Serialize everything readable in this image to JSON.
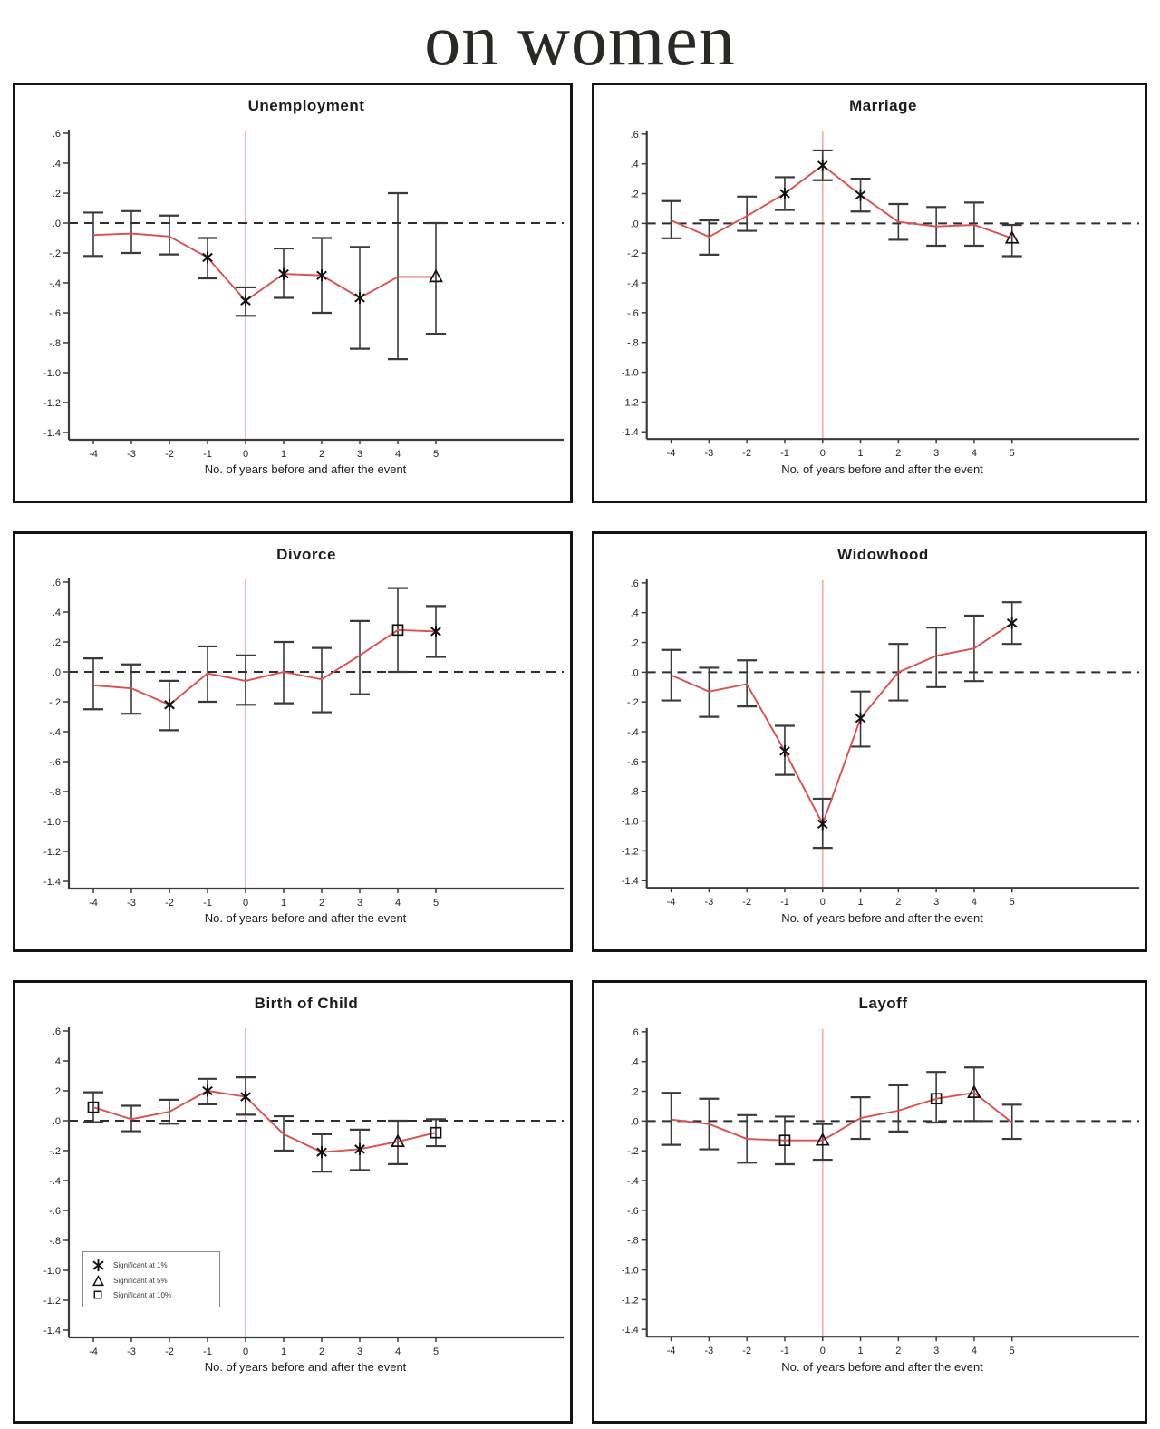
{
  "title": "on women",
  "axis": {
    "xlabel": "No. of years before and after the event",
    "x_ticks": [
      "-4",
      "-3",
      "-2",
      "-1",
      "0",
      "1",
      "2",
      "3",
      "4",
      "5"
    ],
    "y_ticks": [
      ".6",
      ".4",
      ".2",
      ".0",
      "-.2",
      "-.4",
      "-.6",
      "-.8",
      "-1.0",
      "-1.2",
      "-1.4"
    ],
    "y_tick_values": [
      0.6,
      0.4,
      0.2,
      0.0,
      -0.2,
      -0.4,
      -0.6,
      -0.8,
      -1.0,
      -1.2,
      -1.4
    ],
    "ylim": [
      -1.4,
      0.6
    ],
    "event_line_x": 0,
    "zero_line_y": 0
  },
  "legend": {
    "items": [
      {
        "marker": "star",
        "label": "Significant at 1%"
      },
      {
        "marker": "triangle",
        "label": "Significant at 5%"
      },
      {
        "marker": "square",
        "label": "Significant at 10%"
      }
    ]
  },
  "colors": {
    "line": "#dd4f4f",
    "event_line": "#f3b1b1",
    "error_bar": "#3a3a3a",
    "zero_line": "#2e2e2e",
    "axis": "#3a3a3a",
    "marker": "#111111",
    "tick_text": "#222222"
  },
  "chart_data": [
    {
      "type": "line",
      "title": "Unemployment",
      "xlabel": "No. of years before and after the event",
      "ylim": [
        -1.4,
        0.6
      ],
      "x": [
        -4,
        -3,
        -2,
        -1,
        0,
        1,
        2,
        3,
        4,
        5
      ],
      "values": [
        -0.08,
        -0.07,
        -0.09,
        -0.23,
        -0.52,
        -0.34,
        -0.35,
        -0.5,
        -0.36,
        -0.36
      ],
      "ci_low": [
        -0.22,
        -0.2,
        -0.21,
        -0.37,
        -0.62,
        -0.5,
        -0.6,
        -0.84,
        -0.91,
        -0.74
      ],
      "ci_high": [
        0.07,
        0.08,
        0.05,
        -0.1,
        -0.43,
        -0.17,
        -0.1,
        -0.16,
        0.2,
        0.0
      ],
      "significance": [
        null,
        null,
        null,
        "1%",
        "1%",
        "1%",
        "1%",
        "1%",
        null,
        "5%"
      ]
    },
    {
      "type": "line",
      "title": "Marriage",
      "xlabel": "No. of years before and after the event",
      "ylim": [
        -1.4,
        0.6
      ],
      "x": [
        -4,
        -3,
        -2,
        -1,
        0,
        1,
        2,
        3,
        4,
        5
      ],
      "values": [
        0.02,
        -0.09,
        0.05,
        0.2,
        0.39,
        0.19,
        0.01,
        -0.02,
        -0.01,
        -0.1
      ],
      "ci_low": [
        -0.1,
        -0.21,
        -0.05,
        0.09,
        0.29,
        0.08,
        -0.11,
        -0.15,
        -0.15,
        -0.22
      ],
      "ci_high": [
        0.15,
        0.02,
        0.18,
        0.31,
        0.49,
        0.3,
        0.13,
        0.11,
        0.14,
        -0.01
      ],
      "significance": [
        null,
        null,
        null,
        "1%",
        "1%",
        "1%",
        null,
        null,
        null,
        "5%"
      ]
    },
    {
      "type": "line",
      "title": "Divorce",
      "xlabel": "No. of years before and after the event",
      "ylim": [
        -1.4,
        0.6
      ],
      "x": [
        -4,
        -3,
        -2,
        -1,
        0,
        1,
        2,
        3,
        4,
        5
      ],
      "values": [
        -0.09,
        -0.11,
        -0.22,
        -0.01,
        -0.06,
        0.0,
        -0.05,
        0.11,
        0.28,
        0.27
      ],
      "ci_low": [
        -0.25,
        -0.28,
        -0.39,
        -0.2,
        -0.22,
        -0.21,
        -0.27,
        -0.15,
        0.0,
        0.1
      ],
      "ci_high": [
        0.09,
        0.05,
        -0.06,
        0.17,
        0.11,
        0.2,
        0.16,
        0.34,
        0.56,
        0.44
      ],
      "significance": [
        null,
        null,
        "1%",
        null,
        null,
        null,
        null,
        null,
        "10%",
        "1%"
      ]
    },
    {
      "type": "line",
      "title": "Widowhood",
      "xlabel": "No. of years before and after the event",
      "ylim": [
        -1.4,
        0.6
      ],
      "x": [
        -4,
        -3,
        -2,
        -1,
        0,
        1,
        2,
        3,
        4,
        5
      ],
      "values": [
        -0.02,
        -0.13,
        -0.08,
        -0.53,
        -1.02,
        -0.31,
        0.0,
        0.11,
        0.16,
        0.33
      ],
      "ci_low": [
        -0.19,
        -0.3,
        -0.23,
        -0.69,
        -1.18,
        -0.5,
        -0.19,
        -0.1,
        -0.06,
        0.19
      ],
      "ci_high": [
        0.15,
        0.03,
        0.08,
        -0.36,
        -0.85,
        -0.13,
        0.19,
        0.3,
        0.38,
        0.47
      ],
      "significance": [
        null,
        null,
        null,
        "1%",
        "1%",
        "1%",
        null,
        null,
        null,
        "1%"
      ]
    },
    {
      "type": "line",
      "title": "Birth of Child",
      "xlabel": "No. of years before and after the event",
      "ylim": [
        -1.4,
        0.6
      ],
      "x": [
        -4,
        -3,
        -2,
        -1,
        0,
        1,
        2,
        3,
        4,
        5
      ],
      "values": [
        0.09,
        0.01,
        0.06,
        0.2,
        0.16,
        -0.09,
        -0.21,
        -0.19,
        -0.14,
        -0.08
      ],
      "ci_low": [
        -0.01,
        -0.07,
        -0.02,
        0.11,
        0.04,
        -0.2,
        -0.34,
        -0.33,
        -0.29,
        -0.17
      ],
      "ci_high": [
        0.19,
        0.1,
        0.14,
        0.28,
        0.29,
        0.03,
        -0.09,
        -0.06,
        0.0,
        0.01
      ],
      "significance": [
        "10%",
        null,
        null,
        "1%",
        "1%",
        null,
        "1%",
        "1%",
        "5%",
        "10%"
      ],
      "has_legend": true
    },
    {
      "type": "line",
      "title": "Layoff",
      "xlabel": "No. of years before and after the event",
      "ylim": [
        -1.4,
        0.6
      ],
      "x": [
        -4,
        -3,
        -2,
        -1,
        0,
        1,
        2,
        3,
        4,
        5
      ],
      "values": [
        0.01,
        -0.02,
        -0.12,
        -0.13,
        -0.13,
        0.02,
        0.07,
        0.15,
        0.19,
        -0.01
      ],
      "ci_low": [
        -0.16,
        -0.19,
        -0.28,
        -0.29,
        -0.26,
        -0.12,
        -0.07,
        -0.01,
        0.0,
        -0.12
      ],
      "ci_high": [
        0.19,
        0.15,
        0.04,
        0.03,
        -0.02,
        0.16,
        0.24,
        0.33,
        0.36,
        0.11
      ],
      "significance": [
        null,
        null,
        null,
        "10%",
        "5%",
        null,
        null,
        "10%",
        "5%",
        null
      ]
    }
  ]
}
